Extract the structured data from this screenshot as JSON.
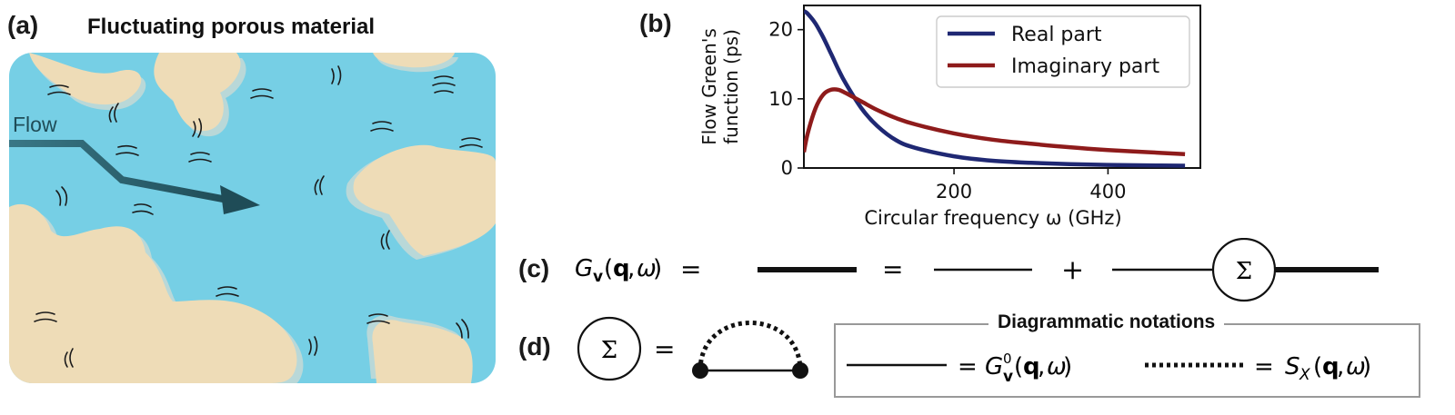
{
  "panel_a": {
    "label": "(a)",
    "title": "Fluctuating porous material",
    "flow_label": "Flow"
  },
  "panel_b": {
    "label": "(b)"
  },
  "panel_c": {
    "label": "(c)"
  },
  "panel_d": {
    "label": "(d)",
    "box_title": "Diagrammatic notations"
  },
  "colors": {
    "water": "#76cfe5",
    "rock": "#eedcb7",
    "rock_shadow": "#b9d8d8",
    "real": "#1f2873",
    "imag": "#8e1b1b",
    "arrow": "#255a66"
  },
  "chart_data": {
    "type": "line",
    "xlabel": "Circular frequency ω (GHz)",
    "ylabel": "Flow Green's function (ps)",
    "xlim": [
      5,
      520
    ],
    "ylim": [
      0,
      23.5
    ],
    "xticks": [
      200,
      400
    ],
    "yticks": [
      0,
      10,
      20
    ],
    "legend_position": "top-right",
    "grid": false,
    "series": [
      {
        "name": "Real part",
        "color": "#1f2873",
        "x": [
          5,
          10,
          20,
          30,
          40,
          50,
          60,
          80,
          100,
          125,
          150,
          200,
          250,
          300,
          350,
          400,
          450,
          500
        ],
        "y": [
          22.7,
          22.3,
          20.9,
          18.9,
          16.6,
          14.2,
          12.1,
          8.6,
          6.1,
          4.0,
          2.9,
          1.7,
          1.05,
          0.75,
          0.55,
          0.45,
          0.38,
          0.33
        ]
      },
      {
        "name": "Imaginary part",
        "color": "#8e1b1b",
        "x": [
          5,
          10,
          20,
          30,
          40,
          50,
          60,
          80,
          100,
          125,
          150,
          200,
          250,
          300,
          350,
          400,
          450,
          500
        ],
        "y": [
          2.3,
          5.0,
          8.6,
          10.6,
          11.3,
          11.3,
          10.8,
          9.6,
          8.4,
          7.2,
          6.3,
          5.0,
          4.1,
          3.5,
          3.0,
          2.6,
          2.3,
          2.0
        ]
      }
    ]
  }
}
